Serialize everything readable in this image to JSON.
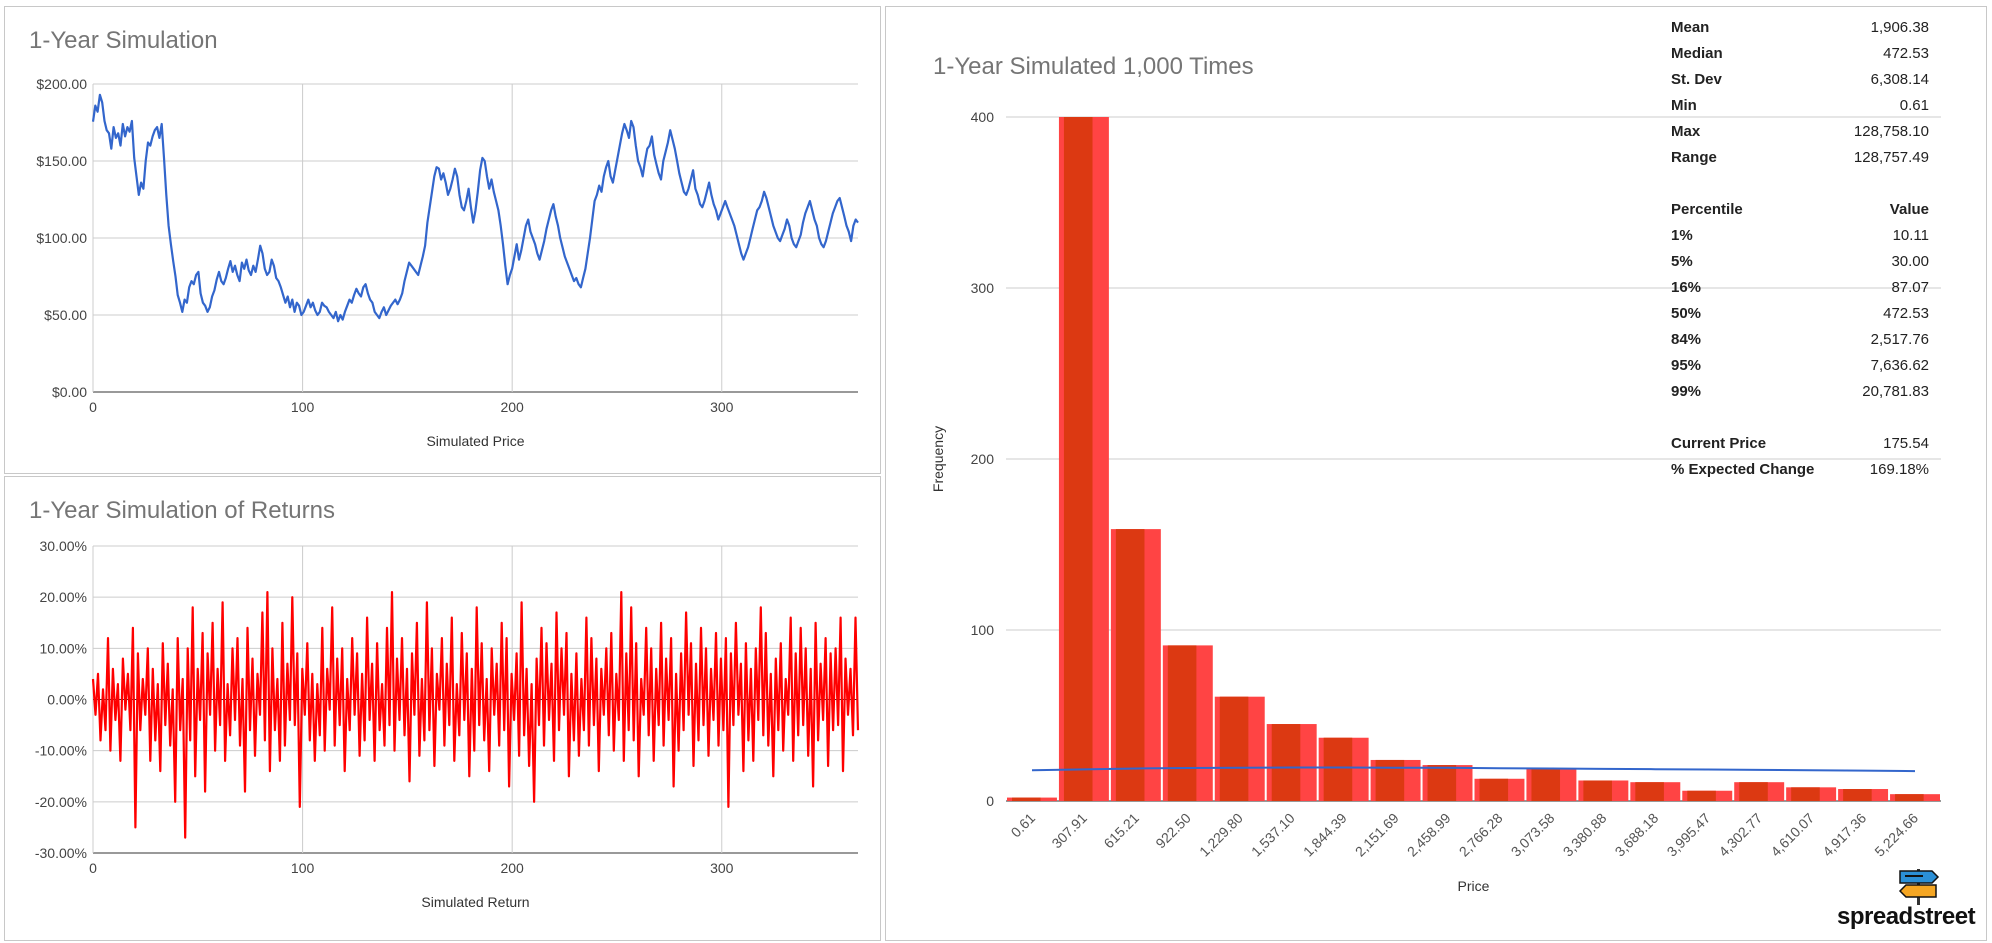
{
  "chart_data": [
    {
      "type": "line",
      "title": "1-Year Simulation",
      "xlabel": "Simulated Price",
      "ylabel": "",
      "xlim": [
        0,
        365
      ],
      "ylim": [
        0,
        200
      ],
      "x_ticks": [
        "0",
        "100",
        "200",
        "300"
      ],
      "y_ticks": [
        "$0.00",
        "$50.00",
        "$100.00",
        "$150.00",
        "$200.00"
      ],
      "grid": true,
      "color": "#3366cc",
      "series": [
        {
          "values": [
            175.54,
            186,
            182,
            193,
            188,
            176,
            170,
            168,
            158,
            172,
            165,
            168,
            160,
            174,
            166,
            172,
            169,
            176,
            152,
            140,
            128,
            136,
            132,
            150,
            162,
            160,
            166,
            170,
            172,
            165,
            174,
            152,
            128,
            108,
            96,
            85,
            75,
            63,
            58,
            52,
            60,
            58,
            68,
            72,
            70,
            76,
            78,
            64,
            58,
            56,
            52,
            55,
            62,
            66,
            73,
            78,
            72,
            70,
            74,
            80,
            85,
            78,
            82,
            76,
            72,
            84,
            80,
            86,
            79,
            76,
            82,
            78,
            86,
            95,
            90,
            80,
            76,
            78,
            86,
            82,
            74,
            72,
            68,
            63,
            58,
            62,
            55,
            60,
            52,
            58,
            56,
            50,
            52,
            56,
            60,
            55,
            58,
            53,
            50,
            52,
            58,
            56,
            55,
            52,
            50,
            48,
            52,
            46,
            50,
            47,
            52,
            56,
            60,
            58,
            63,
            67,
            64,
            62,
            68,
            70,
            64,
            60,
            58,
            52,
            50,
            48,
            52,
            55,
            50,
            53,
            56,
            58,
            60,
            57,
            60,
            64,
            72,
            78,
            84,
            82,
            80,
            78,
            76,
            82,
            88,
            95,
            110,
            120,
            130,
            140,
            146,
            145,
            138,
            142,
            136,
            128,
            132,
            138,
            145,
            140,
            128,
            120,
            118,
            124,
            132,
            120,
            110,
            118,
            130,
            144,
            152,
            150,
            140,
            132,
            138,
            130,
            124,
            118,
            108,
            96,
            82,
            70,
            76,
            80,
            88,
            96,
            86,
            92,
            100,
            108,
            112,
            104,
            100,
            96,
            90,
            86,
            92,
            98,
            106,
            112,
            118,
            122,
            114,
            108,
            100,
            94,
            88,
            84,
            80,
            76,
            72,
            74,
            70,
            68,
            74,
            80,
            90,
            100,
            112,
            124,
            128,
            134,
            130,
            140,
            146,
            150,
            140,
            136,
            144,
            152,
            160,
            168,
            174,
            170,
            165,
            176,
            172,
            160,
            150,
            146,
            140,
            150,
            158,
            160,
            166,
            154,
            148,
            142,
            138,
            150,
            156,
            162,
            170,
            164,
            158,
            150,
            142,
            136,
            130,
            128,
            132,
            138,
            144,
            132,
            128,
            122,
            120,
            124,
            130,
            136,
            128,
            122,
            118,
            112,
            116,
            120,
            124,
            120,
            116,
            112,
            108,
            102,
            96,
            90,
            86,
            90,
            94,
            100,
            106,
            112,
            118,
            120,
            124,
            130,
            126,
            120,
            114,
            108,
            104,
            100,
            98,
            102,
            106,
            112,
            108,
            100,
            96,
            94,
            98,
            102,
            110,
            116,
            120,
            124,
            118,
            112,
            108,
            100,
            96,
            94,
            98,
            104,
            110,
            116,
            120,
            124,
            126,
            120,
            114,
            108,
            104,
            98,
            108,
            112,
            110
          ]
        }
      ]
    },
    {
      "type": "line",
      "title": "1-Year Simulation of Returns",
      "xlabel": "Simulated Return",
      "ylabel": "",
      "xlim": [
        0,
        365
      ],
      "ylim": [
        -30,
        30
      ],
      "x_ticks": [
        "0",
        "100",
        "200",
        "300"
      ],
      "y_ticks": [
        "-30.00%",
        "-20.00%",
        "-10.00%",
        "0.00%",
        "10.00%",
        "20.00%",
        "30.00%"
      ],
      "grid": true,
      "color": "#ff0000",
      "series": [
        {
          "values": [
            4,
            -3,
            5,
            -8,
            2,
            -6,
            12,
            -10,
            6,
            -4,
            3,
            -12,
            8,
            -2,
            5,
            -6,
            14,
            -25,
            9,
            -6,
            4,
            -3,
            10,
            -12,
            6,
            -8,
            3,
            -14,
            11,
            -5,
            7,
            -9,
            2,
            -20,
            12,
            -6,
            4,
            -27,
            10,
            -8,
            18,
            -15,
            6,
            -4,
            13,
            -18,
            9,
            -3,
            15,
            -10,
            6,
            -5,
            19,
            -12,
            3,
            -7,
            10,
            -4,
            12,
            -9,
            4,
            -18,
            14,
            -6,
            8,
            -11,
            5,
            -3,
            17,
            -8,
            21,
            -14,
            10,
            -6,
            4,
            -12,
            15,
            -9,
            7,
            -4,
            20,
            -5,
            9,
            -21,
            6,
            -3,
            11,
            -8,
            5,
            -12,
            3,
            -7,
            14,
            -10,
            6,
            -2,
            18,
            -9,
            8,
            -5,
            10,
            -14,
            4,
            -6,
            12,
            -3,
            9,
            -11,
            5,
            -8,
            16,
            -4,
            7,
            -12,
            11,
            -6,
            3,
            -9,
            14,
            -5,
            21,
            -10,
            8,
            -4,
            12,
            -7,
            6,
            -16,
            9,
            -3,
            15,
            -11,
            4,
            -8,
            19,
            -6,
            10,
            -13,
            5,
            -2,
            12,
            -9,
            7,
            -5,
            16,
            -12,
            3,
            -7,
            13,
            -4,
            9,
            -15,
            6,
            -10,
            18,
            -5,
            11,
            -8,
            4,
            -14,
            10,
            -3,
            7,
            -9,
            15,
            -6,
            12,
            -17,
            5,
            -4,
            9,
            -11,
            19,
            -7,
            6,
            -13,
            3,
            -20,
            8,
            -5,
            14,
            -9,
            11,
            -4,
            7,
            -12,
            17,
            -6,
            10,
            -3,
            13,
            -15,
            5,
            -8,
            9,
            -11,
            4,
            -6,
            16,
            -9,
            12,
            -5,
            8,
            -14,
            6,
            -3,
            10,
            -7,
            13,
            -10,
            5,
            -4,
            21,
            -12,
            9,
            -6,
            18,
            -8,
            11,
            -15,
            4,
            -3,
            14,
            -7,
            10,
            -12,
            6,
            -5,
            15,
            -9,
            8,
            -4,
            12,
            -17,
            5,
            -10,
            9,
            -6,
            17,
            -3,
            11,
            -13,
            7,
            -8,
            14,
            -5,
            10,
            -11,
            6,
            -4,
            13,
            -9,
            8,
            -6,
            12,
            -21,
            9,
            -5,
            15,
            -3,
            7,
            -14,
            11,
            -8,
            6,
            -12,
            10,
            -4,
            18,
            -7,
            13,
            -9,
            5,
            -15,
            8,
            -6,
            11,
            -10,
            4,
            -3,
            16,
            -12,
            9,
            -7,
            14,
            -5,
            10,
            -11,
            6,
            -17,
            15,
            -8,
            7,
            -4,
            12,
            -13,
            9,
            -6,
            10,
            -5,
            16,
            -14,
            8,
            -3,
            6,
            -7,
            16,
            -6
          ]
        }
      ]
    },
    {
      "type": "bar",
      "title": "1-Year Simulated 1,000 Times",
      "xlabel": "Price",
      "ylabel": "Frequency",
      "ylim": [
        0,
        400
      ],
      "y_ticks": [
        "0",
        "100",
        "200",
        "300",
        "400"
      ],
      "grid": true,
      "categories": [
        "0.61",
        "307.91",
        "615.21",
        "922.50",
        "1,229.80",
        "1,537.10",
        "1,844.39",
        "2,151.69",
        "2,458.99",
        "2,766.28",
        "3,073.58",
        "3,380.88",
        "3,688.18",
        "3,995.47",
        "4,302.77",
        "4,610.07",
        "4,917.36",
        "5,224.66"
      ],
      "values": [
        2,
        400,
        159,
        91,
        61,
        45,
        37,
        24,
        21,
        13,
        19,
        12,
        11,
        6,
        11,
        8,
        7,
        4
      ],
      "fit_line": [
        18,
        18.5,
        19,
        19.3,
        19.5,
        19.6,
        19.6,
        19.5,
        19.4,
        19.2,
        19,
        18.8,
        18.6,
        18.4,
        18.2,
        18,
        17.8,
        17.5
      ],
      "bar_color": "#dc3912",
      "bar_highlight": "#ff4444",
      "fit_color": "#3366cc"
    }
  ],
  "stats": {
    "summary": [
      {
        "label": "Mean",
        "value": "1,906.38"
      },
      {
        "label": "Median",
        "value": "472.53"
      },
      {
        "label": "St. Dev",
        "value": "6,308.14"
      },
      {
        "label": "Min",
        "value": "0.61"
      },
      {
        "label": "Max",
        "value": "128,758.10"
      },
      {
        "label": "Range",
        "value": "128,757.49"
      }
    ],
    "percentile_header": {
      "label": "Percentile",
      "value": "Value"
    },
    "percentiles": [
      {
        "label": "1%",
        "value": "10.11"
      },
      {
        "label": "5%",
        "value": "30.00"
      },
      {
        "label": "16%",
        "value": "87.07"
      },
      {
        "label": "50%",
        "value": "472.53"
      },
      {
        "label": "84%",
        "value": "2,517.76"
      },
      {
        "label": "95%",
        "value": "7,636.62"
      },
      {
        "label": "99%",
        "value": "20,781.83"
      }
    ],
    "current": [
      {
        "label": "Current Price",
        "value": "175.54"
      },
      {
        "label": "% Expected Change",
        "value": "169.18%"
      }
    ]
  },
  "logo": {
    "text": "spreadstreet"
  }
}
